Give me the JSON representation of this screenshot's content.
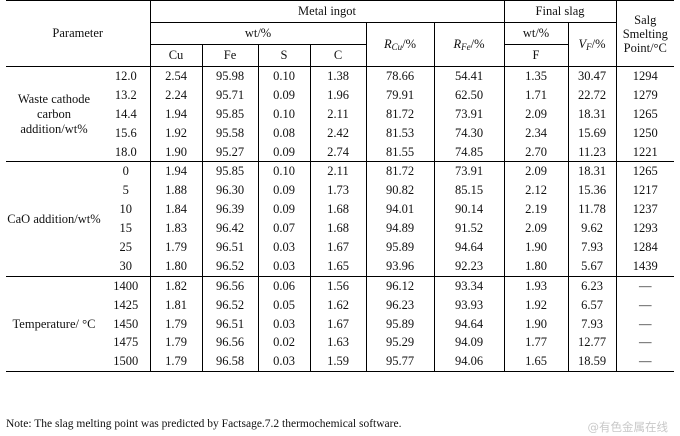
{
  "header": {
    "parameter": "Parameter",
    "metal_ingot": "Metal ingot",
    "final_slag": "Final slag",
    "slag_point": "Salg Smelting Point/°C",
    "wt_metal": "wt/%",
    "wt_slag": "wt/%",
    "cols": [
      "Cu",
      "Fe",
      "S",
      "C"
    ],
    "r_cu_main": "R",
    "r_cu_sub": "Cu",
    "r_cu_unit": "/%",
    "r_fe_main": "R",
    "r_fe_sub": "Fe",
    "r_fe_unit": "/%",
    "f_col": "F",
    "v_main": "V",
    "v_sub": "F",
    "v_unit": "/%"
  },
  "groups": [
    {
      "label": "Waste cathode carbon addition/wt%",
      "rows": [
        [
          "12.0",
          "2.54",
          "95.98",
          "0.10",
          "1.38",
          "78.66",
          "54.41",
          "1.35",
          "30.47",
          "1294"
        ],
        [
          "13.2",
          "2.24",
          "95.71",
          "0.09",
          "1.96",
          "79.91",
          "62.50",
          "1.71",
          "22.72",
          "1279"
        ],
        [
          "14.4",
          "1.94",
          "95.85",
          "0.10",
          "2.11",
          "81.72",
          "73.91",
          "2.09",
          "18.31",
          "1265"
        ],
        [
          "15.6",
          "1.92",
          "95.58",
          "0.08",
          "2.42",
          "81.53",
          "74.30",
          "2.34",
          "15.69",
          "1250"
        ],
        [
          "18.0",
          "1.90",
          "95.27",
          "0.09",
          "2.74",
          "81.55",
          "74.85",
          "2.70",
          "11.23",
          "1221"
        ]
      ]
    },
    {
      "label": "CaO addition/wt%",
      "rows": [
        [
          "0",
          "1.94",
          "95.85",
          "0.10",
          "2.11",
          "81.72",
          "73.91",
          "2.09",
          "18.31",
          "1265"
        ],
        [
          "5",
          "1.88",
          "96.30",
          "0.09",
          "1.73",
          "90.82",
          "85.15",
          "2.12",
          "15.36",
          "1217"
        ],
        [
          "10",
          "1.84",
          "96.39",
          "0.09",
          "1.68",
          "94.01",
          "90.14",
          "2.19",
          "11.78",
          "1237"
        ],
        [
          "15",
          "1.83",
          "96.42",
          "0.07",
          "1.68",
          "94.89",
          "91.52",
          "2.09",
          "9.62",
          "1293"
        ],
        [
          "25",
          "1.79",
          "96.51",
          "0.03",
          "1.67",
          "95.89",
          "94.64",
          "1.90",
          "7.93",
          "1284"
        ],
        [
          "30",
          "1.80",
          "96.52",
          "0.03",
          "1.65",
          "93.96",
          "92.23",
          "1.80",
          "5.67",
          "1439"
        ]
      ]
    },
    {
      "label": "Temperature/ °C",
      "rows": [
        [
          "1400",
          "1.82",
          "96.56",
          "0.06",
          "1.56",
          "96.12",
          "93.34",
          "1.93",
          "6.23",
          "—"
        ],
        [
          "1425",
          "1.81",
          "96.52",
          "0.05",
          "1.62",
          "96.23",
          "93.93",
          "1.92",
          "6.57",
          "—"
        ],
        [
          "1450",
          "1.79",
          "96.51",
          "0.03",
          "1.67",
          "95.89",
          "94.64",
          "1.90",
          "7.93",
          "—"
        ],
        [
          "1475",
          "1.79",
          "96.56",
          "0.02",
          "1.63",
          "95.29",
          "94.09",
          "1.77",
          "12.77",
          "—"
        ],
        [
          "1500",
          "1.79",
          "96.58",
          "0.03",
          "1.59",
          "95.77",
          "94.06",
          "1.65",
          "18.59",
          "—"
        ]
      ]
    }
  ],
  "note": "Note: The slag melting point was predicted by Factsage.7.2 thermochemical software.",
  "watermark": "@有色金属在线"
}
